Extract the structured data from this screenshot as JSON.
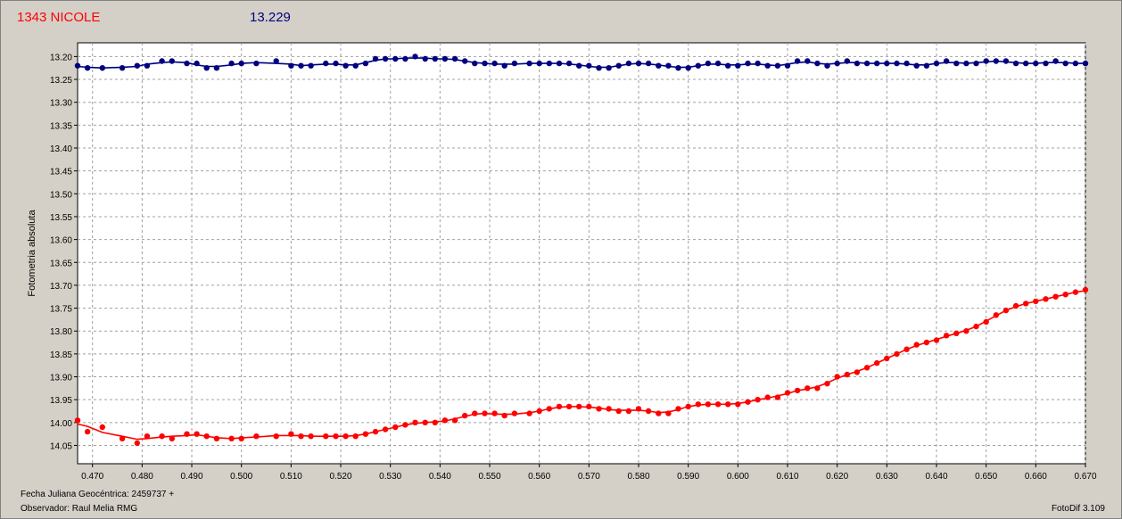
{
  "header": {
    "title": "1343 NICOLE",
    "value": "13.229"
  },
  "footer": {
    "date_label": "Fecha Juliana Geocéntrica: 2459737 +",
    "observer": "Observador: Raul Melia RMG",
    "software": "FotoDif 3.109"
  },
  "colors": {
    "target": "#ff0000",
    "comparison": "#000080",
    "background": "#d4d0c8",
    "plot_bg": "#ffffff",
    "grid": "#a0a0a0"
  },
  "chart_data": {
    "type": "line",
    "title": "",
    "xlabel": "",
    "ylabel": "Fotometria absoluta",
    "xlim": [
      0.467,
      0.67
    ],
    "ylim": [
      14.09,
      13.17
    ],
    "y_inverted": true,
    "grid": true,
    "legend": "none",
    "x_ticks": [
      "0.470",
      "0.480",
      "0.490",
      "0.500",
      "0.510",
      "0.520",
      "0.530",
      "0.540",
      "0.550",
      "0.560",
      "0.570",
      "0.580",
      "0.590",
      "0.600",
      "0.610",
      "0.620",
      "0.630",
      "0.640",
      "0.650",
      "0.660",
      "0.670"
    ],
    "y_ticks": [
      "13.20",
      "13.25",
      "13.30",
      "13.35",
      "13.40",
      "13.45",
      "13.50",
      "13.55",
      "13.60",
      "13.65",
      "13.70",
      "13.75",
      "13.80",
      "13.85",
      "13.90",
      "13.95",
      "14.00",
      "14.05"
    ],
    "series": [
      {
        "color": "#000080",
        "x": [
          0.467,
          0.469,
          0.472,
          0.476,
          0.479,
          0.481,
          0.484,
          0.486,
          0.489,
          0.491,
          0.493,
          0.495,
          0.498,
          0.5,
          0.503,
          0.507,
          0.51,
          0.512,
          0.514,
          0.517,
          0.519,
          0.521,
          0.523,
          0.525,
          0.527,
          0.529,
          0.531,
          0.533,
          0.535,
          0.537,
          0.539,
          0.541,
          0.543,
          0.545,
          0.547,
          0.549,
          0.551,
          0.553,
          0.555,
          0.558,
          0.56,
          0.562,
          0.564,
          0.566,
          0.568,
          0.57,
          0.572,
          0.574,
          0.576,
          0.578,
          0.58,
          0.582,
          0.584,
          0.586,
          0.588,
          0.59,
          0.592,
          0.594,
          0.596,
          0.598,
          0.6,
          0.602,
          0.604,
          0.606,
          0.608,
          0.61,
          0.612,
          0.614,
          0.616,
          0.618,
          0.62,
          0.622,
          0.624,
          0.626,
          0.628,
          0.63,
          0.632,
          0.634,
          0.636,
          0.638,
          0.64,
          0.642,
          0.644,
          0.646,
          0.648,
          0.65,
          0.652,
          0.654,
          0.656,
          0.658,
          0.66,
          0.662,
          0.664,
          0.666,
          0.668,
          0.67
        ],
        "y": [
          13.22,
          13.225,
          13.225,
          13.225,
          13.22,
          13.22,
          13.21,
          13.21,
          13.215,
          13.215,
          13.225,
          13.225,
          13.215,
          13.215,
          13.215,
          13.21,
          13.22,
          13.22,
          13.22,
          13.215,
          13.215,
          13.22,
          13.22,
          13.215,
          13.205,
          13.205,
          13.205,
          13.205,
          13.2,
          13.205,
          13.205,
          13.205,
          13.205,
          13.21,
          13.215,
          13.215,
          13.215,
          13.22,
          13.215,
          13.215,
          13.215,
          13.215,
          13.215,
          13.215,
          13.22,
          13.22,
          13.225,
          13.225,
          13.22,
          13.215,
          13.215,
          13.215,
          13.22,
          13.22,
          13.225,
          13.225,
          13.22,
          13.215,
          13.215,
          13.22,
          13.22,
          13.215,
          13.215,
          13.22,
          13.22,
          13.22,
          13.21,
          13.21,
          13.215,
          13.22,
          13.215,
          13.21,
          13.215,
          13.215,
          13.215,
          13.215,
          13.215,
          13.215,
          13.22,
          13.22,
          13.215,
          13.21,
          13.215,
          13.215,
          13.215,
          13.21,
          13.21,
          13.21,
          13.215,
          13.215,
          13.215,
          13.215,
          13.21,
          13.215,
          13.215,
          13.215
        ]
      },
      {
        "color": "#ff0000",
        "x": [
          0.467,
          0.469,
          0.472,
          0.476,
          0.479,
          0.481,
          0.484,
          0.486,
          0.489,
          0.491,
          0.493,
          0.495,
          0.498,
          0.5,
          0.503,
          0.507,
          0.51,
          0.512,
          0.514,
          0.517,
          0.519,
          0.521,
          0.523,
          0.525,
          0.527,
          0.529,
          0.531,
          0.533,
          0.535,
          0.537,
          0.539,
          0.541,
          0.543,
          0.545,
          0.547,
          0.549,
          0.551,
          0.553,
          0.555,
          0.558,
          0.56,
          0.562,
          0.564,
          0.566,
          0.568,
          0.57,
          0.572,
          0.574,
          0.576,
          0.578,
          0.58,
          0.582,
          0.584,
          0.586,
          0.588,
          0.59,
          0.592,
          0.594,
          0.596,
          0.598,
          0.6,
          0.602,
          0.604,
          0.606,
          0.608,
          0.61,
          0.612,
          0.614,
          0.616,
          0.618,
          0.62,
          0.622,
          0.624,
          0.626,
          0.628,
          0.63,
          0.632,
          0.634,
          0.636,
          0.638,
          0.64,
          0.642,
          0.644,
          0.646,
          0.648,
          0.65,
          0.652,
          0.654,
          0.656,
          0.658,
          0.66,
          0.662,
          0.664,
          0.666,
          0.668,
          0.67
        ],
        "y": [
          13.995,
          14.02,
          14.01,
          14.035,
          14.045,
          14.03,
          14.03,
          14.035,
          14.025,
          14.025,
          14.03,
          14.035,
          14.035,
          14.035,
          14.03,
          14.03,
          14.025,
          14.03,
          14.03,
          14.03,
          14.03,
          14.03,
          14.03,
          14.025,
          14.02,
          14.015,
          14.01,
          14.005,
          14.0,
          14.0,
          14.0,
          13.995,
          13.995,
          13.985,
          13.98,
          13.98,
          13.98,
          13.985,
          13.98,
          13.98,
          13.975,
          13.97,
          13.965,
          13.965,
          13.965,
          13.965,
          13.97,
          13.97,
          13.975,
          13.975,
          13.97,
          13.975,
          13.98,
          13.98,
          13.97,
          13.965,
          13.96,
          13.96,
          13.96,
          13.96,
          13.96,
          13.955,
          13.95,
          13.945,
          13.945,
          13.935,
          13.93,
          13.925,
          13.925,
          13.915,
          13.9,
          13.895,
          13.89,
          13.88,
          13.87,
          13.86,
          13.85,
          13.84,
          13.83,
          13.825,
          13.82,
          13.81,
          13.805,
          13.8,
          13.79,
          13.78,
          13.765,
          13.755,
          13.745,
          13.74,
          13.735,
          13.73,
          13.725,
          13.72,
          13.715,
          13.71
        ]
      }
    ]
  }
}
